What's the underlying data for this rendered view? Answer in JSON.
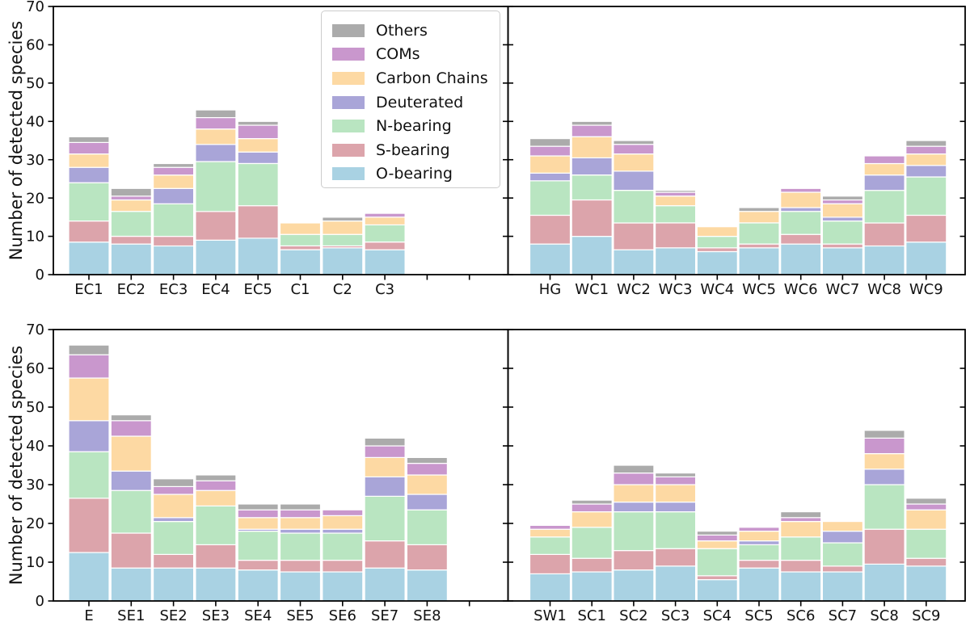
{
  "figure": {
    "ylabel": "Number of detected species",
    "yticks": [
      0,
      10,
      20,
      30,
      40,
      50,
      60,
      70
    ],
    "ylim": [
      0,
      70
    ],
    "grid": false,
    "legend_position": "upper area of top-left panel"
  },
  "legend": {
    "entries": [
      {
        "label": "Others",
        "color": "#ababab"
      },
      {
        "label": "COMs",
        "color": "#c997cd"
      },
      {
        "label": "Carbon Chains",
        "color": "#fdd9a3"
      },
      {
        "label": "Deuterated",
        "color": "#a9a5d8"
      },
      {
        "label": "N-bearing",
        "color": "#b9e5c1"
      },
      {
        "label": "S-bearing",
        "color": "#dca4ab"
      },
      {
        "label": "O-bearing",
        "color": "#a9d2e3"
      }
    ]
  },
  "chart_data": [
    {
      "type": "bar",
      "stacked": true,
      "position": "top-left",
      "n_slots": 10,
      "ylim": [
        0,
        70
      ],
      "categories": [
        "EC1",
        "EC2",
        "EC3",
        "EC4",
        "EC5",
        "C1",
        "C2",
        "C3"
      ],
      "series": [
        {
          "name": "O-bearing",
          "color": "#a9d2e3",
          "values": [
            8.5,
            8,
            7.5,
            9,
            9.5,
            6.5,
            7,
            6.5
          ]
        },
        {
          "name": "S-bearing",
          "color": "#dca4ab",
          "values": [
            5.5,
            2,
            2.5,
            7.5,
            8.5,
            1,
            0.5,
            2
          ]
        },
        {
          "name": "N-bearing",
          "color": "#b9e5c1",
          "values": [
            10,
            6.5,
            8.5,
            13,
            11,
            3,
            3,
            4.5
          ]
        },
        {
          "name": "Deuterated",
          "color": "#a9a5d8",
          "values": [
            4,
            0,
            4,
            4.5,
            3,
            0,
            0,
            0
          ]
        },
        {
          "name": "Carbon Chains",
          "color": "#fdd9a3",
          "values": [
            3.5,
            3,
            3.5,
            4,
            3.5,
            3,
            3.5,
            2
          ]
        },
        {
          "name": "COMs",
          "color": "#c997cd",
          "values": [
            3,
            1,
            2,
            3,
            3.5,
            0,
            0,
            1
          ]
        },
        {
          "name": "Others",
          "color": "#ababab",
          "values": [
            1.5,
            2,
            1,
            2,
            1,
            0,
            1,
            0
          ]
        }
      ]
    },
    {
      "type": "bar",
      "stacked": true,
      "position": "top-right",
      "n_slots": 10,
      "ylim": [
        0,
        70
      ],
      "categories": [
        "HG",
        "WC1",
        "WC2",
        "WC3",
        "WC4",
        "WC5",
        "WC6",
        "WC7",
        "WC8",
        "WC9"
      ],
      "series": [
        {
          "name": "O-bearing",
          "color": "#a9d2e3",
          "values": [
            8,
            10,
            6.5,
            7,
            6,
            7,
            8,
            7,
            7.5,
            8.5
          ]
        },
        {
          "name": "S-bearing",
          "color": "#dca4ab",
          "values": [
            7.5,
            9.5,
            7,
            6.5,
            1,
            1,
            2.5,
            1,
            6,
            7
          ]
        },
        {
          "name": "N-bearing",
          "color": "#b9e5c1",
          "values": [
            9,
            6.5,
            8.5,
            4.5,
            3,
            5.5,
            6,
            6,
            8.5,
            10
          ]
        },
        {
          "name": "Deuterated",
          "color": "#a9a5d8",
          "values": [
            2,
            4.5,
            5,
            0,
            0,
            0,
            1,
            1,
            4,
            3
          ]
        },
        {
          "name": "Carbon Chains",
          "color": "#fdd9a3",
          "values": [
            4.5,
            5.5,
            4.5,
            2.5,
            2.5,
            3,
            4,
            3.5,
            3,
            3
          ]
        },
        {
          "name": "COMs",
          "color": "#c997cd",
          "values": [
            2.5,
            3,
            2.5,
            1,
            0,
            0,
            1,
            1,
            2,
            2
          ]
        },
        {
          "name": "Others",
          "color": "#ababab",
          "values": [
            2,
            1,
            1,
            0.5,
            0,
            1,
            0,
            1,
            0,
            1.5
          ]
        }
      ]
    },
    {
      "type": "bar",
      "stacked": true,
      "position": "bottom-left",
      "n_slots": 10,
      "ylim": [
        0,
        70
      ],
      "categories": [
        "E",
        "SE1",
        "SE2",
        "SE3",
        "SE4",
        "SE5",
        "SE6",
        "SE7",
        "SE8"
      ],
      "series": [
        {
          "name": "O-bearing",
          "color": "#a9d2e3",
          "values": [
            12.5,
            8.5,
            8.5,
            8.5,
            8,
            7.5,
            7.5,
            8.5,
            8
          ]
        },
        {
          "name": "S-bearing",
          "color": "#dca4ab",
          "values": [
            14,
            9,
            3.5,
            6,
            2.5,
            3,
            3,
            7,
            6.5
          ]
        },
        {
          "name": "N-bearing",
          "color": "#b9e5c1",
          "values": [
            12,
            11,
            8.5,
            10,
            7.5,
            7,
            7,
            11.5,
            9
          ]
        },
        {
          "name": "Deuterated",
          "color": "#a9a5d8",
          "values": [
            8,
            5,
            1,
            0,
            0.5,
            1,
            1,
            5,
            4
          ]
        },
        {
          "name": "Carbon Chains",
          "color": "#fdd9a3",
          "values": [
            11,
            9,
            6,
            4,
            3,
            3,
            3.5,
            5,
            5
          ]
        },
        {
          "name": "COMs",
          "color": "#c997cd",
          "values": [
            6,
            4,
            2,
            2.5,
            2,
            2,
            1.5,
            3,
            3
          ]
        },
        {
          "name": "Others",
          "color": "#ababab",
          "values": [
            2.5,
            1.5,
            2,
            1.5,
            1.5,
            1.5,
            0,
            2,
            1.5
          ]
        }
      ]
    },
    {
      "type": "bar",
      "stacked": true,
      "position": "bottom-right",
      "n_slots": 10,
      "ylim": [
        0,
        70
      ],
      "categories": [
        "SW1",
        "SC1",
        "SC2",
        "SC3",
        "SC4",
        "SC5",
        "SC6",
        "SC7",
        "SC8",
        "SC9"
      ],
      "series": [
        {
          "name": "O-bearing",
          "color": "#a9d2e3",
          "values": [
            7,
            7.5,
            8,
            9,
            5.5,
            8.5,
            7.5,
            7.5,
            9.5,
            9
          ]
        },
        {
          "name": "S-bearing",
          "color": "#dca4ab",
          "values": [
            5,
            3.5,
            5,
            4.5,
            1,
            2,
            3,
            1.5,
            9,
            2
          ]
        },
        {
          "name": "N-bearing",
          "color": "#b9e5c1",
          "values": [
            4.5,
            8,
            10,
            9.5,
            7,
            4,
            6,
            6,
            11.5,
            7.5
          ]
        },
        {
          "name": "Deuterated",
          "color": "#a9a5d8",
          "values": [
            0,
            0,
            2.5,
            2.5,
            0,
            1,
            0,
            3,
            4,
            0
          ]
        },
        {
          "name": "Carbon Chains",
          "color": "#fdd9a3",
          "values": [
            2,
            4,
            4.5,
            4.5,
            2,
            2.5,
            4,
            2.5,
            4,
            5
          ]
        },
        {
          "name": "COMs",
          "color": "#c997cd",
          "values": [
            1,
            2,
            3,
            2,
            1.5,
            1,
            1,
            0,
            4,
            1.5
          ]
        },
        {
          "name": "Others",
          "color": "#ababab",
          "values": [
            0,
            1,
            2,
            1,
            1,
            0,
            1.5,
            0,
            2,
            1.5
          ]
        }
      ]
    }
  ]
}
